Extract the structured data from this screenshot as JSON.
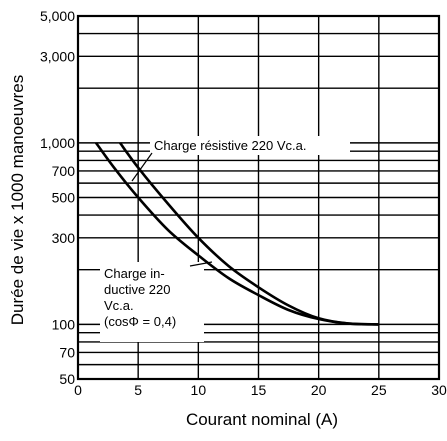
{
  "chart_data": {
    "type": "line",
    "xlabel": "Courant nominal (A)",
    "ylabel": "Durée de vie x 1000 manoeuvres",
    "xlim": [
      0,
      30
    ],
    "ylim": [
      50,
      5000
    ],
    "yscale": "log",
    "grid": true,
    "x_ticks": [
      {
        "value": 0,
        "label": "0"
      },
      {
        "value": 5,
        "label": "5"
      },
      {
        "value": 10,
        "label": "10"
      },
      {
        "value": 15,
        "label": "15"
      },
      {
        "value": 20,
        "label": "20"
      },
      {
        "value": 25,
        "label": "25"
      },
      {
        "value": 30,
        "label": "30"
      }
    ],
    "y_ticks": [
      {
        "value": 50,
        "label": "50"
      },
      {
        "value": 70,
        "label": "70"
      },
      {
        "value": 100,
        "label": "100"
      },
      {
        "value": 300,
        "label": "300"
      },
      {
        "value": 500,
        "label": "500"
      },
      {
        "value": 700,
        "label": "700"
      },
      {
        "value": 1000,
        "label": "1,000"
      },
      {
        "value": 3000,
        "label": "3,000"
      },
      {
        "value": 5000,
        "label": "5,000"
      }
    ],
    "y_gridlines": [
      50,
      60,
      70,
      80,
      90,
      100,
      200,
      300,
      400,
      500,
      600,
      700,
      800,
      900,
      1000,
      2000,
      3000,
      4000,
      5000
    ],
    "series": [
      {
        "name": "Charge résistive 220 Vc.a.",
        "x": [
          3.5,
          5,
          7.5,
          10,
          12.5,
          15,
          17.5,
          20,
          22.5,
          25
        ],
        "y": [
          1000,
          730,
          460,
          300,
          210,
          160,
          127,
          108,
          101,
          100
        ]
      },
      {
        "name": "Charge in- ductive 220 Vc.a. (cosΦ = 0,4)",
        "x": [
          1.5,
          3,
          5,
          7.5,
          10,
          12.5,
          15,
          17.5,
          20,
          22.5,
          25
        ],
        "y": [
          1000,
          730,
          500,
          330,
          240,
          180,
          145,
          120,
          107,
          101,
          100
        ]
      }
    ],
    "annotations": {
      "resistive": "Charge résistive 220 Vc.a.",
      "inductive_lines": [
        "Charge in-",
        "ductive 220",
        "Vc.a.",
        "(cosΦ = 0,4)"
      ]
    }
  }
}
